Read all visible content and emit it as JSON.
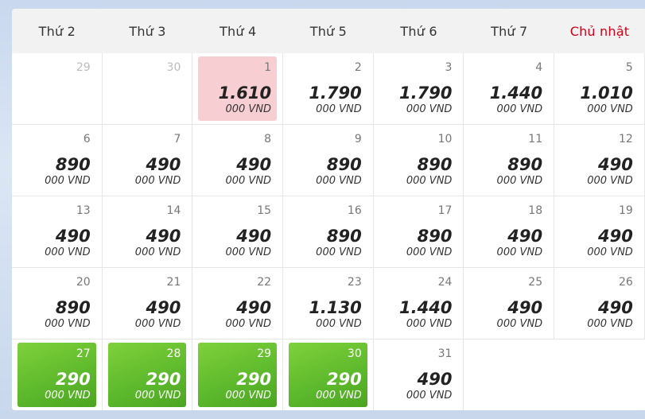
{
  "weekdays": [
    "Thứ 2",
    "Thứ 3",
    "Thứ 4",
    "Thứ 5",
    "Thứ 6",
    "Thứ 7",
    "Chủ nhật"
  ],
  "unit": "000 VND",
  "colors": {
    "sunday": "#d0021b",
    "selected": "#f7cfd2",
    "cheap": "#5cb82c"
  },
  "cells": [
    {
      "day": "29",
      "state": "muted"
    },
    {
      "day": "30",
      "state": "muted"
    },
    {
      "day": "1",
      "price": "1.610",
      "state": "selected"
    },
    {
      "day": "2",
      "price": "1.790",
      "state": "normal"
    },
    {
      "day": "3",
      "price": "1.790",
      "state": "normal"
    },
    {
      "day": "4",
      "price": "1.440",
      "state": "normal"
    },
    {
      "day": "5",
      "price": "1.010",
      "state": "normal"
    },
    {
      "day": "6",
      "price": "890",
      "state": "normal"
    },
    {
      "day": "7",
      "price": "490",
      "state": "normal"
    },
    {
      "day": "8",
      "price": "490",
      "state": "normal"
    },
    {
      "day": "9",
      "price": "890",
      "state": "normal"
    },
    {
      "day": "10",
      "price": "890",
      "state": "normal"
    },
    {
      "day": "11",
      "price": "890",
      "state": "normal"
    },
    {
      "day": "12",
      "price": "490",
      "state": "normal"
    },
    {
      "day": "13",
      "price": "490",
      "state": "normal"
    },
    {
      "day": "14",
      "price": "490",
      "state": "normal"
    },
    {
      "day": "15",
      "price": "490",
      "state": "normal"
    },
    {
      "day": "16",
      "price": "890",
      "state": "normal"
    },
    {
      "day": "17",
      "price": "890",
      "state": "normal"
    },
    {
      "day": "18",
      "price": "490",
      "state": "normal"
    },
    {
      "day": "19",
      "price": "490",
      "state": "normal"
    },
    {
      "day": "20",
      "price": "890",
      "state": "normal"
    },
    {
      "day": "21",
      "price": "490",
      "state": "normal"
    },
    {
      "day": "22",
      "price": "490",
      "state": "normal"
    },
    {
      "day": "23",
      "price": "1.130",
      "state": "normal"
    },
    {
      "day": "24",
      "price": "1.440",
      "state": "normal"
    },
    {
      "day": "25",
      "price": "490",
      "state": "normal"
    },
    {
      "day": "26",
      "price": "490",
      "state": "normal"
    },
    {
      "day": "27",
      "price": "290",
      "state": "cheap"
    },
    {
      "day": "28",
      "price": "290",
      "state": "cheap"
    },
    {
      "day": "29",
      "price": "290",
      "state": "cheap"
    },
    {
      "day": "30",
      "price": "290",
      "state": "cheap"
    },
    {
      "day": "31",
      "price": "490",
      "state": "normal"
    },
    {
      "state": "empty"
    },
    {
      "state": "empty"
    }
  ]
}
